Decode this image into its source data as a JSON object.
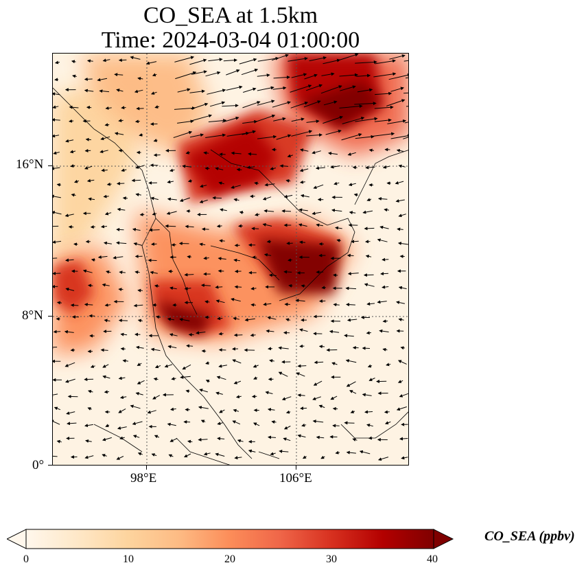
{
  "title": {
    "line1": "CO_SEA at 1.5km",
    "line2": "Time: 2024-03-04 01:00:00"
  },
  "map": {
    "lat_labels": [
      "16°N",
      "8°N",
      "0°"
    ],
    "lon_labels": [
      "98°E",
      "106°E"
    ],
    "gridlines": true,
    "colormap": "OrRd",
    "colors": [
      "#fff7ec",
      "#fee8c8",
      "#fdd49e",
      "#fdbb84",
      "#fc8d59",
      "#ef6548",
      "#d7301f",
      "#b30000",
      "#7f0000"
    ]
  },
  "colorbar": {
    "ticks": [
      "0",
      "10",
      "20",
      "30",
      "40"
    ],
    "label": "CO_SEA (ppbv)",
    "min": 0,
    "max": 40,
    "extend": "both"
  }
}
